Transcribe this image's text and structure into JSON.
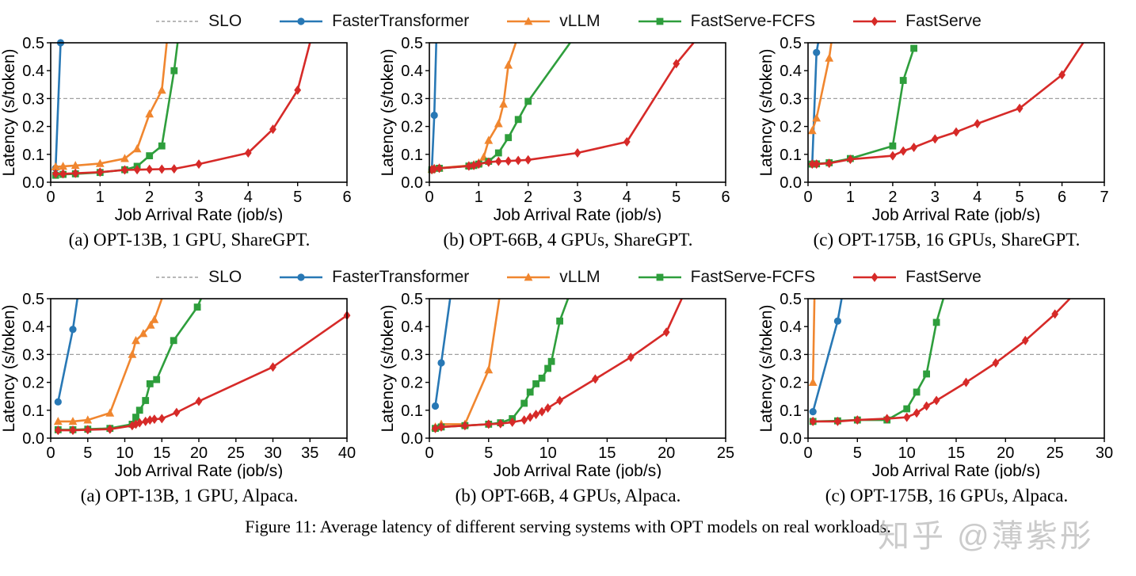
{
  "figure": {
    "caption": "Figure 11: Average latency of different serving systems with OPT models on real workloads.",
    "watermark": "知乎 @薄紫彤"
  },
  "legend": {
    "slo": {
      "label": "SLO",
      "color": "#a0a0a0",
      "style": "dashed"
    },
    "series": [
      {
        "label": "FasterTransformer",
        "color": "#2878b5",
        "marker": "circle"
      },
      {
        "label": "vLLM",
        "color": "#f0862f",
        "marker": "triangle"
      },
      {
        "label": "FastServe-FCFS",
        "color": "#2e9e3c",
        "marker": "square"
      },
      {
        "label": "FastServe",
        "color": "#d62a28",
        "marker": "diamond"
      }
    ]
  },
  "axes": {
    "xlabel": "Job Arrival Rate (job/s)",
    "ylabel": "Latency (s/token)",
    "ylim": [
      0,
      0.5
    ],
    "yticks": [
      "0.0",
      "0.1",
      "0.2",
      "0.3",
      "0.4",
      "0.5"
    ],
    "slo_value": 0.3,
    "grid": "off",
    "legend_position": "top-center"
  },
  "chart_data": [
    {
      "type": "line",
      "caption": "(a) OPT-13B, 1 GPU, ShareGPT.",
      "xlim": [
        0,
        6
      ],
      "xticks": [
        0,
        1,
        2,
        3,
        4,
        5,
        6
      ],
      "slo": 0.3,
      "series": [
        {
          "name": "FasterTransformer",
          "points": [
            [
              0.1,
              0.05
            ],
            [
              0.2,
              0.5
            ]
          ]
        },
        {
          "name": "vLLM",
          "points": [
            [
              0.1,
              0.055
            ],
            [
              0.25,
              0.057
            ],
            [
              0.5,
              0.06
            ],
            [
              1,
              0.067
            ],
            [
              1.5,
              0.085
            ],
            [
              1.75,
              0.12
            ],
            [
              2,
              0.245
            ],
            [
              2.25,
              0.33
            ],
            [
              2.35,
              0.5,
              0
            ]
          ]
        },
        {
          "name": "FastServe-FCFS",
          "points": [
            [
              0.1,
              0.025
            ],
            [
              0.25,
              0.028
            ],
            [
              0.5,
              0.03
            ],
            [
              1,
              0.035
            ],
            [
              1.5,
              0.045
            ],
            [
              1.75,
              0.057
            ],
            [
              2,
              0.095
            ],
            [
              2.25,
              0.13
            ],
            [
              2.5,
              0.4
            ],
            [
              2.57,
              0.5,
              0
            ]
          ]
        },
        {
          "name": "FastServe",
          "points": [
            [
              0.1,
              0.03
            ],
            [
              0.25,
              0.03
            ],
            [
              0.5,
              0.032
            ],
            [
              1,
              0.036
            ],
            [
              1.5,
              0.044
            ],
            [
              1.75,
              0.045
            ],
            [
              2,
              0.046
            ],
            [
              2.25,
              0.047
            ],
            [
              2.5,
              0.048
            ],
            [
              3,
              0.065
            ],
            [
              4,
              0.105
            ],
            [
              4.5,
              0.19
            ],
            [
              5,
              0.33
            ],
            [
              5.25,
              0.5,
              0
            ]
          ]
        }
      ]
    },
    {
      "type": "line",
      "caption": "(b) OPT-66B, 4 GPUs, ShareGPT.",
      "xlim": [
        0,
        6
      ],
      "xticks": [
        0,
        1,
        2,
        3,
        4,
        5,
        6
      ],
      "slo": 0.3,
      "series": [
        {
          "name": "FasterTransformer",
          "points": [
            [
              0.05,
              0.045
            ],
            [
              0.1,
              0.24
            ],
            [
              0.14,
              0.5,
              0
            ]
          ]
        },
        {
          "name": "vLLM",
          "points": [
            [
              0.05,
              0.047
            ],
            [
              0.1,
              0.05
            ],
            [
              0.2,
              0.051
            ],
            [
              0.8,
              0.06
            ],
            [
              0.9,
              0.063
            ],
            [
              1,
              0.07
            ],
            [
              1.1,
              0.09
            ],
            [
              1.2,
              0.15
            ],
            [
              1.4,
              0.21
            ],
            [
              1.5,
              0.28
            ],
            [
              1.6,
              0.42
            ],
            [
              1.75,
              0.5,
              0
            ]
          ]
        },
        {
          "name": "FastServe-FCFS",
          "points": [
            [
              0.05,
              0.045
            ],
            [
              0.2,
              0.05
            ],
            [
              0.8,
              0.058
            ],
            [
              0.9,
              0.06
            ],
            [
              1,
              0.065
            ],
            [
              1.2,
              0.075
            ],
            [
              1.4,
              0.105
            ],
            [
              1.6,
              0.16
            ],
            [
              1.8,
              0.225
            ],
            [
              2,
              0.29
            ],
            [
              2.85,
              0.5,
              0
            ]
          ]
        },
        {
          "name": "FastServe",
          "points": [
            [
              0.05,
              0.045
            ],
            [
              0.1,
              0.048
            ],
            [
              0.2,
              0.05
            ],
            [
              0.8,
              0.058
            ],
            [
              0.9,
              0.06
            ],
            [
              1,
              0.065
            ],
            [
              1.2,
              0.072
            ],
            [
              1.4,
              0.075
            ],
            [
              1.6,
              0.076
            ],
            [
              1.8,
              0.078
            ],
            [
              2,
              0.08
            ],
            [
              3,
              0.105
            ],
            [
              4,
              0.145
            ],
            [
              5,
              0.425
            ],
            [
              5.35,
              0.5,
              0
            ]
          ]
        }
      ]
    },
    {
      "type": "line",
      "caption": "(c) OPT-175B, 16 GPUs, ShareGPT.",
      "xlim": [
        0,
        7
      ],
      "xticks": [
        0,
        1,
        2,
        3,
        4,
        5,
        6,
        7
      ],
      "slo": 0.3,
      "series": [
        {
          "name": "FasterTransformer",
          "points": [
            [
              0.1,
              0.065
            ],
            [
              0.2,
              0.465
            ],
            [
              0.24,
              0.5,
              0
            ]
          ]
        },
        {
          "name": "vLLM",
          "points": [
            [
              0.1,
              0.185
            ],
            [
              0.2,
              0.23
            ],
            [
              0.5,
              0.445
            ],
            [
              0.55,
              0.5,
              0
            ]
          ]
        },
        {
          "name": "FastServe-FCFS",
          "points": [
            [
              0.1,
              0.065
            ],
            [
              0.2,
              0.066
            ],
            [
              0.5,
              0.07
            ],
            [
              1,
              0.085
            ],
            [
              2,
              0.13
            ],
            [
              2.25,
              0.365
            ],
            [
              2.5,
              0.48
            ]
          ]
        },
        {
          "name": "FastServe",
          "points": [
            [
              0.1,
              0.065
            ],
            [
              0.2,
              0.065
            ],
            [
              0.5,
              0.068
            ],
            [
              1,
              0.082
            ],
            [
              2,
              0.095
            ],
            [
              2.25,
              0.112
            ],
            [
              2.5,
              0.125
            ],
            [
              3,
              0.155
            ],
            [
              3.5,
              0.18
            ],
            [
              4,
              0.21
            ],
            [
              5,
              0.265
            ],
            [
              6,
              0.385
            ],
            [
              6.5,
              0.5,
              0
            ]
          ]
        }
      ]
    },
    {
      "type": "line",
      "caption": "(a) OPT-13B, 1 GPU, Alpaca.",
      "xlim": [
        0,
        40
      ],
      "xticks": [
        0,
        5,
        10,
        15,
        20,
        25,
        30,
        35,
        40
      ],
      "slo": 0.3,
      "series": [
        {
          "name": "FasterTransformer",
          "points": [
            [
              1,
              0.13
            ],
            [
              3,
              0.39
            ],
            [
              3.6,
              0.5,
              0
            ]
          ]
        },
        {
          "name": "vLLM",
          "points": [
            [
              1,
              0.06
            ],
            [
              3,
              0.06
            ],
            [
              5,
              0.065
            ],
            [
              8,
              0.09
            ],
            [
              11,
              0.3
            ],
            [
              11.5,
              0.35
            ],
            [
              12.5,
              0.375
            ],
            [
              13.5,
              0.405
            ],
            [
              14,
              0.425
            ],
            [
              15,
              0.5,
              0
            ]
          ]
        },
        {
          "name": "FastServe-FCFS",
          "points": [
            [
              1,
              0.03
            ],
            [
              3,
              0.03
            ],
            [
              5,
              0.032
            ],
            [
              8,
              0.035
            ],
            [
              11,
              0.05
            ],
            [
              11.5,
              0.075
            ],
            [
              12,
              0.1
            ],
            [
              12.8,
              0.135
            ],
            [
              13.4,
              0.195
            ],
            [
              14.3,
              0.21
            ],
            [
              16.6,
              0.35
            ],
            [
              19.8,
              0.47
            ],
            [
              20.3,
              0.5,
              0
            ]
          ]
        },
        {
          "name": "FastServe",
          "points": [
            [
              1,
              0.028
            ],
            [
              3,
              0.028
            ],
            [
              5,
              0.03
            ],
            [
              8,
              0.032
            ],
            [
              11,
              0.045
            ],
            [
              11.5,
              0.05
            ],
            [
              12,
              0.055
            ],
            [
              12.8,
              0.06
            ],
            [
              13.4,
              0.065
            ],
            [
              14,
              0.068
            ],
            [
              15,
              0.07
            ],
            [
              17,
              0.092
            ],
            [
              20,
              0.132
            ],
            [
              30,
              0.255
            ],
            [
              40,
              0.44
            ]
          ]
        }
      ]
    },
    {
      "type": "line",
      "caption": "(b) OPT-66B, 4 GPUs, Alpaca.",
      "xlim": [
        0,
        25
      ],
      "xticks": [
        0,
        5,
        10,
        15,
        20,
        25
      ],
      "slo": 0.3,
      "series": [
        {
          "name": "FasterTransformer",
          "points": [
            [
              0.5,
              0.115
            ],
            [
              1,
              0.27
            ],
            [
              1.75,
              0.5,
              0
            ]
          ]
        },
        {
          "name": "vLLM",
          "points": [
            [
              0.5,
              0.04
            ],
            [
              1,
              0.05
            ],
            [
              3,
              0.05
            ],
            [
              5,
              0.245
            ],
            [
              5.9,
              0.5,
              0
            ]
          ]
        },
        {
          "name": "FastServe-FCFS",
          "points": [
            [
              0.5,
              0.035
            ],
            [
              1,
              0.04
            ],
            [
              3,
              0.045
            ],
            [
              5,
              0.05
            ],
            [
              6,
              0.055
            ],
            [
              7,
              0.07
            ],
            [
              8,
              0.125
            ],
            [
              8.5,
              0.165
            ],
            [
              9,
              0.195
            ],
            [
              9.5,
              0.215
            ],
            [
              10,
              0.25
            ],
            [
              10.3,
              0.275
            ],
            [
              11,
              0.42
            ],
            [
              11.7,
              0.5,
              0
            ]
          ]
        },
        {
          "name": "FastServe",
          "points": [
            [
              0.5,
              0.035
            ],
            [
              1,
              0.04
            ],
            [
              3,
              0.045
            ],
            [
              5,
              0.05
            ],
            [
              6,
              0.052
            ],
            [
              7,
              0.057
            ],
            [
              8,
              0.065
            ],
            [
              8.5,
              0.075
            ],
            [
              9,
              0.085
            ],
            [
              9.5,
              0.095
            ],
            [
              10,
              0.108
            ],
            [
              11,
              0.135
            ],
            [
              14,
              0.212
            ],
            [
              17,
              0.29
            ],
            [
              20,
              0.38
            ],
            [
              21.3,
              0.5,
              0
            ]
          ]
        }
      ]
    },
    {
      "type": "line",
      "caption": "(c) OPT-175B, 16 GPUs, Alpaca.",
      "xlim": [
        0,
        30
      ],
      "xticks": [
        0,
        5,
        10,
        15,
        20,
        25,
        30
      ],
      "slo": 0.3,
      "series": [
        {
          "name": "FasterTransformer",
          "points": [
            [
              0.5,
              0.095
            ],
            [
              3,
              0.42
            ],
            [
              3.4,
              0.5,
              0
            ]
          ]
        },
        {
          "name": "vLLM",
          "points": [
            [
              0.5,
              0.2
            ],
            [
              0.65,
              0.5,
              0
            ]
          ]
        },
        {
          "name": "FastServe-FCFS",
          "points": [
            [
              0.5,
              0.06
            ],
            [
              3,
              0.062
            ],
            [
              5,
              0.065
            ],
            [
              8,
              0.065
            ],
            [
              10,
              0.105
            ],
            [
              11,
              0.165
            ],
            [
              12,
              0.23
            ],
            [
              13,
              0.415
            ],
            [
              13.7,
              0.5,
              0
            ]
          ]
        },
        {
          "name": "FastServe",
          "points": [
            [
              0.5,
              0.06
            ],
            [
              3,
              0.06
            ],
            [
              5,
              0.065
            ],
            [
              8,
              0.07
            ],
            [
              10,
              0.075
            ],
            [
              11,
              0.09
            ],
            [
              12,
              0.115
            ],
            [
              13,
              0.135
            ],
            [
              16,
              0.2
            ],
            [
              19,
              0.27
            ],
            [
              22,
              0.35
            ],
            [
              25,
              0.445
            ],
            [
              26.5,
              0.5,
              0
            ]
          ]
        }
      ]
    }
  ]
}
